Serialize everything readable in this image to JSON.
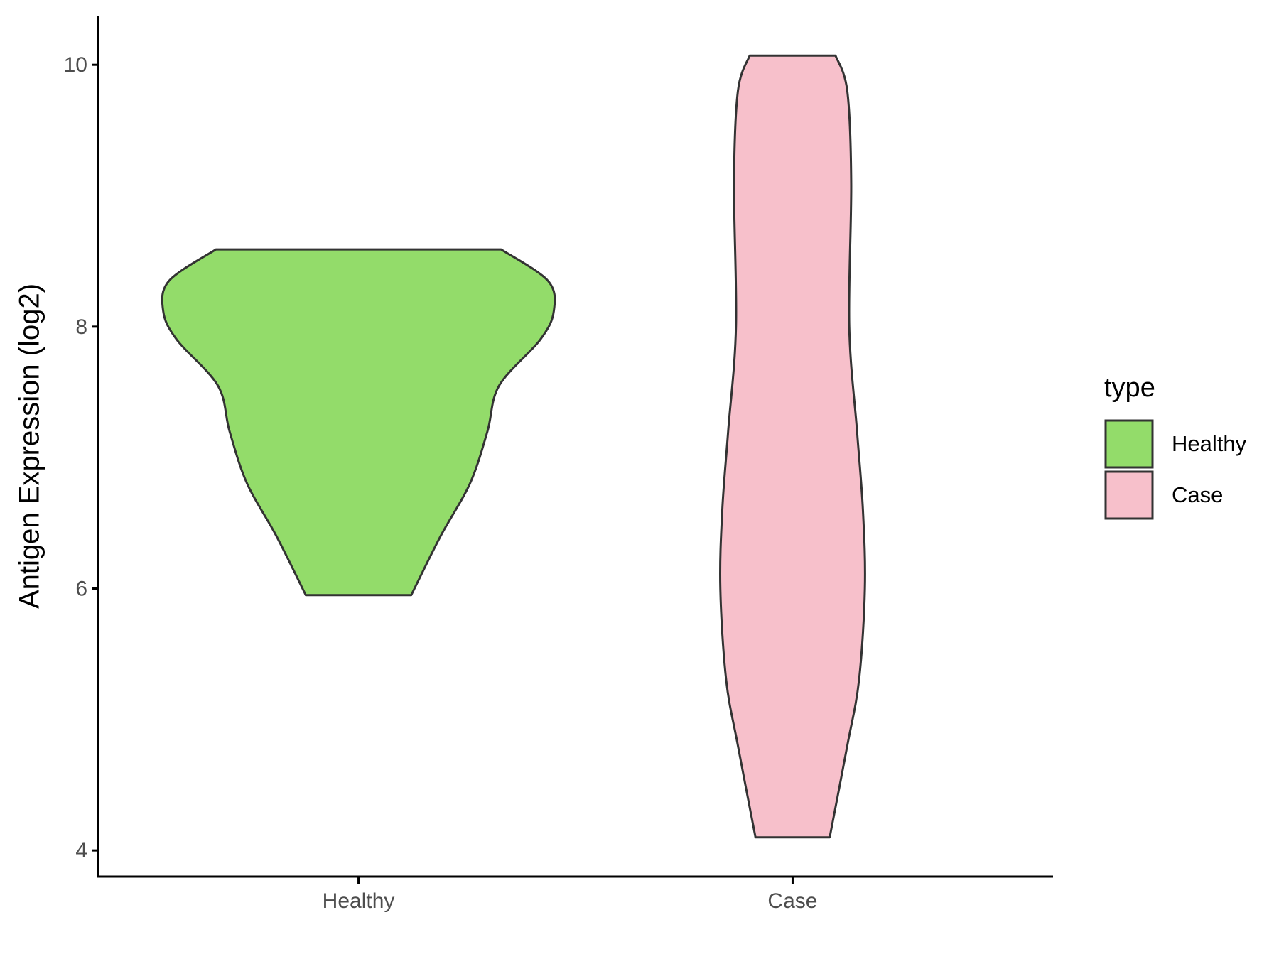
{
  "chart_data": {
    "type": "violin",
    "y_label": "Antigen Expression (log2)",
    "categories": [
      "Healthy",
      "Case"
    ],
    "series": [
      {
        "name": "Healthy",
        "color": "#93dc6a",
        "y": [
          8.59,
          8.35,
          8.12,
          7.9,
          7.55,
          7.2,
          6.8,
          6.4,
          5.95
        ],
        "width": [
          0.73,
          0.97,
          1.0,
          0.93,
          0.72,
          0.66,
          0.57,
          0.42,
          0.27
        ]
      },
      {
        "name": "Case",
        "color": "#f7c0cb",
        "y": [
          10.07,
          9.8,
          9.1,
          8.0,
          7.2,
          6.6,
          6.0,
          5.3,
          4.8,
          4.1
        ],
        "width": [
          0.22,
          0.28,
          0.3,
          0.29,
          0.33,
          0.36,
          0.37,
          0.34,
          0.28,
          0.19
        ]
      }
    ],
    "ylim": [
      3.8,
      10.37
    ],
    "yticks": [
      4,
      6,
      8,
      10
    ],
    "legend_title": "type",
    "legend": "right"
  }
}
